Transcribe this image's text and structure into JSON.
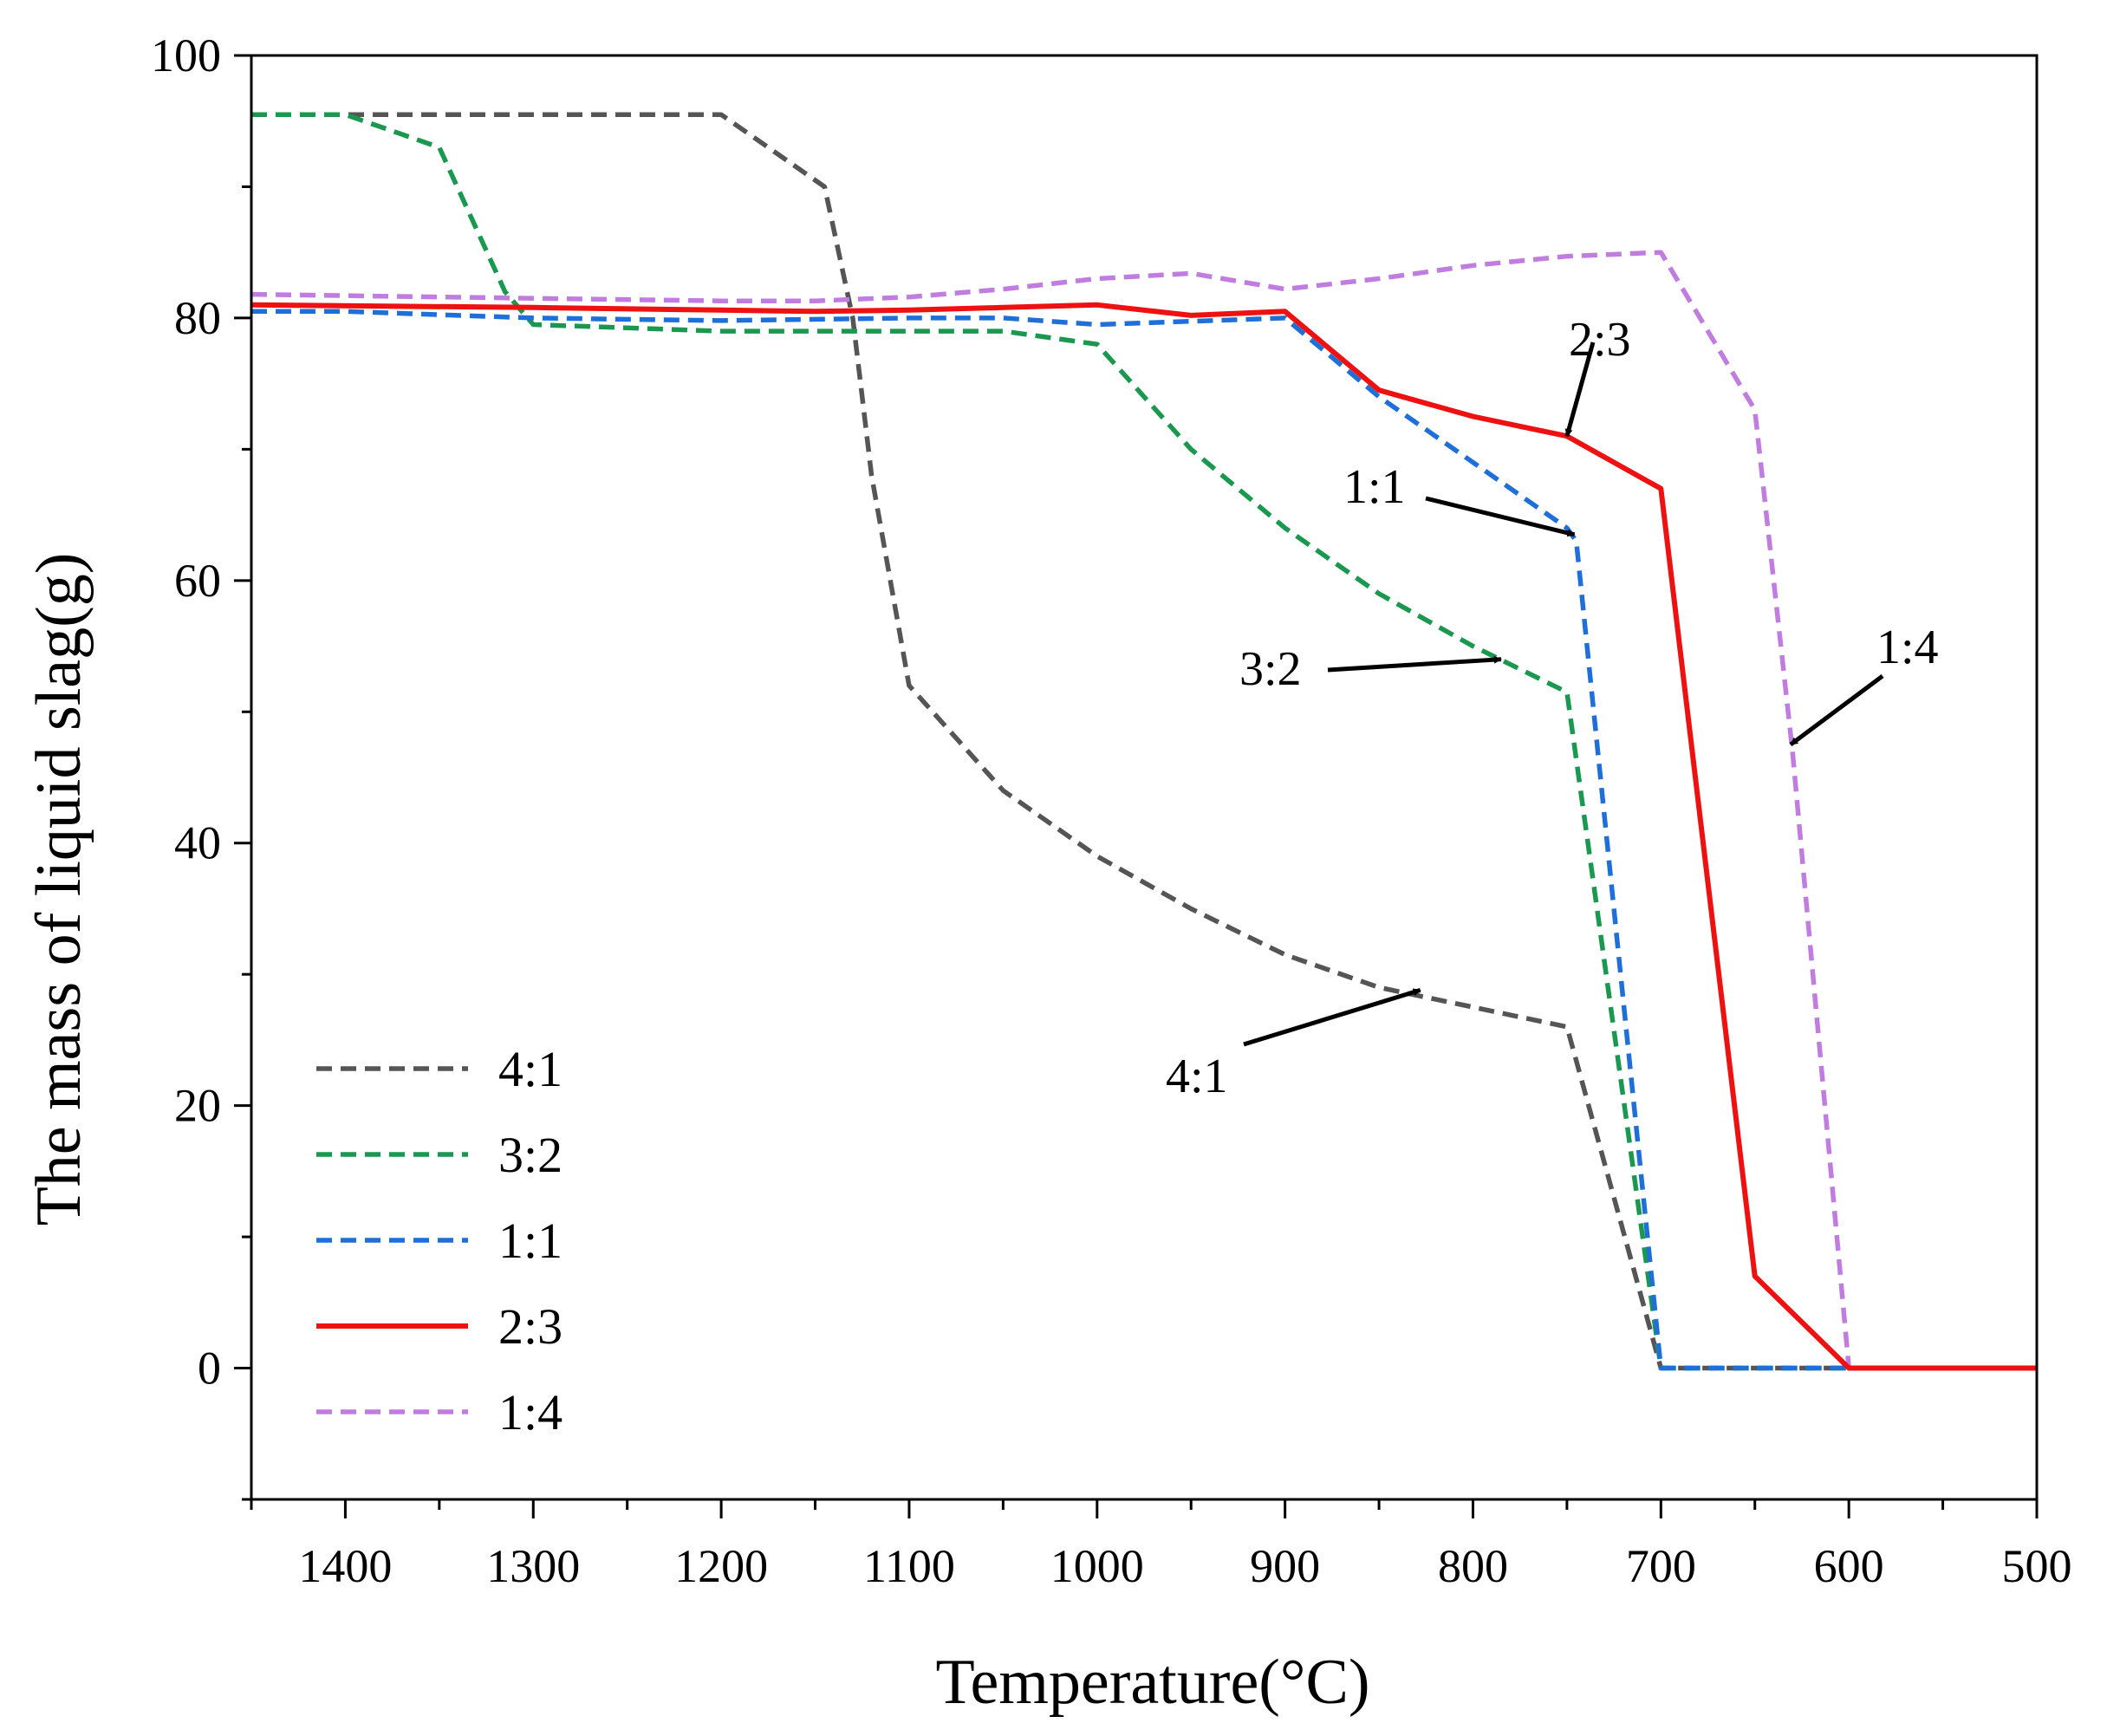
{
  "chart_data": {
    "type": "line",
    "title": "",
    "xlabel": "Temperature(°C)",
    "ylabel": "The mass of liquid slag(g)",
    "xlim": [
      1450,
      500
    ],
    "ylim": [
      -10,
      100
    ],
    "x_ticks": [
      1400,
      1300,
      1200,
      1100,
      1000,
      900,
      800,
      700,
      600,
      500
    ],
    "y_ticks": [
      0,
      20,
      40,
      60,
      80,
      100
    ],
    "grid": false,
    "legend_position": "bottom-left",
    "series": [
      {
        "name": "4:1",
        "color": "#555555",
        "dash": "dashed",
        "points": [
          [
            1450,
            95.5
          ],
          [
            1200,
            95.5
          ],
          [
            1145,
            90
          ],
          [
            1130,
            80
          ],
          [
            1120,
            68
          ],
          [
            1100,
            52
          ],
          [
            1050,
            44
          ],
          [
            1000,
            39
          ],
          [
            950,
            35
          ],
          [
            900,
            31.5
          ],
          [
            850,
            29
          ],
          [
            800,
            27.5
          ],
          [
            750,
            26
          ],
          [
            700,
            0
          ],
          [
            500,
            0
          ]
        ]
      },
      {
        "name": "3:2",
        "color": "#1a9850",
        "dash": "dashed",
        "points": [
          [
            1450,
            95.5
          ],
          [
            1400,
            95.5
          ],
          [
            1350,
            93
          ],
          [
            1315,
            82
          ],
          [
            1300,
            79.5
          ],
          [
            1200,
            79
          ],
          [
            1100,
            79
          ],
          [
            1050,
            79
          ],
          [
            1000,
            78
          ],
          [
            950,
            70
          ],
          [
            900,
            64
          ],
          [
            850,
            59
          ],
          [
            800,
            55
          ],
          [
            750,
            51.5
          ],
          [
            700,
            0
          ],
          [
            500,
            0
          ]
        ]
      },
      {
        "name": "1:1",
        "color": "#1f6fd8",
        "dash": "dashed",
        "points": [
          [
            1450,
            80.5
          ],
          [
            1400,
            80.5
          ],
          [
            1300,
            80
          ],
          [
            1200,
            79.8
          ],
          [
            1100,
            80
          ],
          [
            1050,
            80
          ],
          [
            1000,
            79.5
          ],
          [
            900,
            80
          ],
          [
            850,
            74
          ],
          [
            800,
            69
          ],
          [
            750,
            64
          ],
          [
            745,
            63
          ],
          [
            700,
            0
          ],
          [
            500,
            0
          ]
        ]
      },
      {
        "name": "2:3",
        "color": "#ee1111",
        "dash": "solid",
        "points": [
          [
            1450,
            81
          ],
          [
            1300,
            80.8
          ],
          [
            1200,
            80.6
          ],
          [
            1150,
            80.5
          ],
          [
            1100,
            80.6
          ],
          [
            1050,
            80.8
          ],
          [
            1000,
            81
          ],
          [
            950,
            80.2
          ],
          [
            900,
            80.5
          ],
          [
            850,
            74.5
          ],
          [
            800,
            72.5
          ],
          [
            750,
            71
          ],
          [
            700,
            67
          ],
          [
            650,
            7
          ],
          [
            600,
            0
          ],
          [
            500,
            0
          ]
        ]
      },
      {
        "name": "1:4",
        "color": "#c07ddf",
        "dash": "dashed",
        "points": [
          [
            1450,
            81.8
          ],
          [
            1300,
            81.5
          ],
          [
            1200,
            81.3
          ],
          [
            1150,
            81.3
          ],
          [
            1100,
            81.6
          ],
          [
            1050,
            82.2
          ],
          [
            1000,
            83
          ],
          [
            950,
            83.4
          ],
          [
            900,
            82.2
          ],
          [
            850,
            83
          ],
          [
            800,
            84
          ],
          [
            750,
            84.7
          ],
          [
            700,
            85
          ],
          [
            650,
            73
          ],
          [
            630,
            47
          ],
          [
            600,
            0
          ],
          [
            500,
            0
          ]
        ]
      }
    ],
    "annotations": [
      {
        "text": "2:3",
        "target": [
          750,
          71
        ]
      },
      {
        "text": "1:1",
        "target": [
          746,
          63.5
        ]
      },
      {
        "text": "3:2",
        "target": [
          785,
          54
        ]
      },
      {
        "text": "1:4",
        "target": [
          631,
          47.5
        ]
      },
      {
        "text": "4:1",
        "target": [
          828,
          28.8
        ]
      }
    ]
  }
}
